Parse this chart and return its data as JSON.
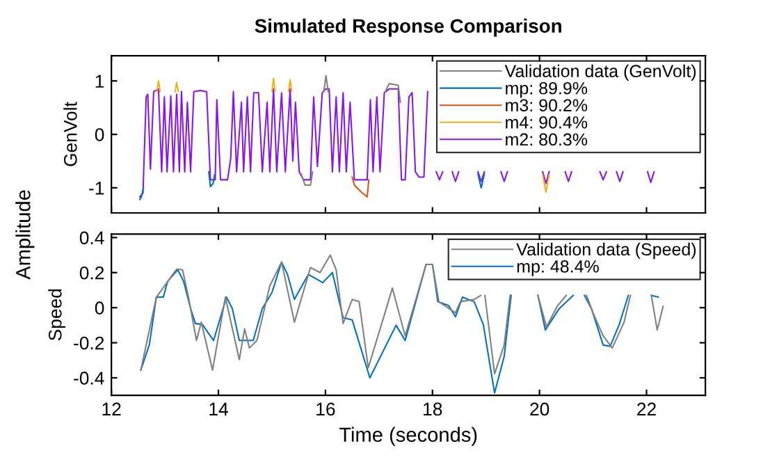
{
  "chart_data": [
    {
      "type": "line",
      "title": "Simulated Response Comparison",
      "ylabel": "GenVolt",
      "annotations": [
        "Amplitude"
      ],
      "x": [
        12.53,
        12.59,
        12.65,
        12.68,
        12.73,
        12.79,
        12.88,
        12.94,
        12.99,
        13.04,
        13.11,
        13.16,
        13.22,
        13.27,
        13.31,
        13.37,
        13.42,
        13.48,
        13.54,
        13.66,
        13.78,
        13.85,
        13.94,
        13.97,
        14.04,
        14.17,
        14.23,
        14.28,
        14.34,
        14.43,
        14.47,
        14.54,
        14.6,
        14.66,
        14.75,
        14.82,
        14.91,
        14.96,
        15.03,
        15.09,
        15.18,
        15.25,
        15.34,
        15.39,
        15.44,
        15.51,
        15.59,
        15.72,
        15.78,
        15.85,
        15.94,
        16.01,
        16.07,
        16.13,
        16.2,
        16.26,
        16.33,
        16.39,
        16.46,
        16.54,
        16.67,
        16.78,
        16.84,
        16.89,
        16.96,
        17.02,
        17.1,
        17.19,
        17.36,
        17.42,
        17.49,
        17.56,
        17.62,
        17.68,
        17.75,
        17.84,
        17.91,
        18.0,
        18.07,
        18.13,
        18.19,
        18.25,
        18.37,
        18.43,
        18.49,
        18.55,
        18.85,
        18.91,
        18.97,
        19.03,
        19.28,
        19.34,
        19.4,
        19.46,
        20.06,
        20.12,
        20.18,
        20.24,
        20.48,
        20.54,
        20.6,
        20.66,
        21.13,
        21.19,
        21.25,
        21.31,
        21.44,
        21.5,
        21.56,
        21.62,
        22.02,
        22.08,
        22.14
      ],
      "series": [
        {
          "name": "Validation data (GenVolt)",
          "color": "#808080",
          "x": [
            15.55,
            15.62,
            15.72,
            15.76,
            15.9,
            15.97,
            16.01,
            16.05,
            16.5,
            17.12,
            17.19,
            17.36,
            17.4
          ],
          "values": [
            -0.75,
            -0.95,
            -0.95,
            -0.7,
            null,
            0.8,
            1.1,
            0.8,
            null,
            0.8,
            0.95,
            0.92,
            0.6
          ]
        },
        {
          "name": "mp: 89.9%",
          "color": "#0072bd",
          "x": [
            12.53,
            12.56,
            12.6,
            12.7,
            13.82,
            13.85,
            13.9,
            13.93,
            14.2,
            18.85,
            18.91,
            18.97
          ],
          "values": [
            -1.22,
            -1.17,
            -1.0,
            null,
            -0.7,
            -0.98,
            -0.92,
            -0.75,
            null,
            -0.74,
            -1.0,
            -0.74
          ]
        },
        {
          "name": "m3: 90.2%",
          "color": "#d95319",
          "x": [
            16.5,
            16.54,
            16.67,
            16.78,
            16.81
          ],
          "values": [
            -0.8,
            -0.95,
            -1.08,
            -1.17,
            -0.85
          ]
        },
        {
          "name": "m4: 90.4%",
          "color": "#edb120",
          "x": [
            12.85,
            12.88,
            12.91,
            13.0,
            13.19,
            13.22,
            13.25,
            13.5,
            15.0,
            15.03,
            15.06,
            15.2,
            15.31,
            15.34,
            15.37,
            15.6,
            20.06,
            20.12,
            20.18
          ],
          "values": [
            0.8,
            1.0,
            0.8,
            null,
            0.8,
            0.97,
            0.8,
            null,
            0.8,
            1.05,
            0.8,
            null,
            0.8,
            1.02,
            0.8,
            null,
            -0.76,
            -1.08,
            -0.76
          ]
        },
        {
          "name": "m2: 80.3%",
          "color": "#8b17e6",
          "values": [
            -1.17,
            -1.1,
            0.7,
            0.75,
            -0.65,
            0.8,
            0.85,
            -0.7,
            0.7,
            -0.7,
            0.72,
            -0.7,
            0.75,
            -0.7,
            0.8,
            -0.7,
            0.6,
            -0.7,
            0.8,
            0.82,
            0.8,
            -0.85,
            -0.85,
            0.65,
            -0.85,
            -0.85,
            -0.45,
            0.8,
            -0.7,
            0.6,
            -0.7,
            0.7,
            -0.7,
            0.78,
            0.78,
            -0.7,
            0.6,
            -0.7,
            0.85,
            -0.7,
            0.78,
            -0.7,
            0.85,
            -0.5,
            0.6,
            -0.7,
            -0.85,
            -0.85,
            0.7,
            -0.6,
            0.78,
            0.85,
            0.85,
            -0.7,
            0.7,
            -0.7,
            0.78,
            -0.7,
            0.6,
            -0.85,
            -0.85,
            -0.85,
            0.65,
            -0.7,
            0.7,
            -0.7,
            0.78,
            0.85,
            0.85,
            -0.85,
            -0.85,
            0.7,
            0.78,
            -0.7,
            -0.8,
            -0.8,
            0.8,
            null,
            -0.7,
            -0.85,
            -0.7,
            null,
            -0.7,
            -0.88,
            -0.7,
            null,
            -0.7,
            -0.88,
            -0.7,
            null,
            -0.7,
            -0.88,
            -0.7,
            null,
            -0.7,
            -0.92,
            -0.7,
            null,
            -0.7,
            -0.88,
            -0.7,
            null,
            -0.7,
            -0.85,
            -0.7,
            null,
            -0.7,
            -0.88,
            -0.7,
            null,
            -0.7,
            -0.9,
            -0.7
          ]
        }
      ],
      "xlim": [
        12,
        23.1
      ],
      "xticks": [
        12,
        14,
        16,
        18,
        20,
        22
      ],
      "ylim": [
        -1.47,
        1.47
      ],
      "yticks": [
        -1,
        0,
        1
      ],
      "tick_labels": "y",
      "legend": "top right",
      "grid": false,
      "marker": "none",
      "line_style": "solid"
    },
    {
      "type": "line",
      "xlabel": "Time (seconds)",
      "ylabel": "Speed",
      "series": [
        {
          "name": "Validation data (Speed)",
          "color": "#808080",
          "x": [
            12.55,
            12.84,
            13.22,
            13.33,
            13.44,
            13.59,
            13.68,
            13.89,
            14.13,
            14.39,
            14.49,
            14.58,
            14.72,
            14.96,
            15.18,
            15.42,
            15.72,
            15.9,
            16.09,
            16.2,
            16.33,
            16.5,
            16.63,
            16.8,
            17.15,
            17.25,
            17.49,
            17.88,
            18.0,
            18.12,
            18.43,
            18.52,
            18.78,
            18.9,
            18.95,
            18.98,
            19.16,
            19.34,
            19.45,
            19.6,
            19.97,
            20.13,
            20.33,
            20.5,
            20.7,
            20.88,
            21.02,
            21.19,
            21.36,
            21.58,
            21.7,
            21.9,
            22.09,
            22.2,
            22.31
          ],
          "values": [
            -0.356,
            0.06,
            0.22,
            0.216,
            0.06,
            -0.187,
            -0.083,
            -0.356,
            0.06,
            -0.296,
            -0.12,
            -0.23,
            -0.187,
            0.125,
            0.26,
            -0.083,
            0.229,
            0.2,
            0.3,
            0.216,
            -0.09,
            0.047,
            0.034,
            -0.343,
            0.008,
            0.112,
            -0.161,
            0.247,
            0.247,
            0.034,
            -0.03,
            0.034,
            0.047,
            0.07,
            null,
            0.07,
            -0.377,
            -0.213,
            0.07,
            null,
            0.07,
            -0.109,
            0.008,
            0.07,
            null,
            0.07,
            -0.044,
            -0.161,
            -0.23,
            -0.083,
            0.07,
            null,
            0.07,
            -0.127,
            0.008
          ]
        },
        {
          "name": "mp: 48.4%",
          "color": "#0072bd",
          "x": [
            12.55,
            12.71,
            12.84,
            12.97,
            13.05,
            13.24,
            13.35,
            13.48,
            13.57,
            13.7,
            13.91,
            14.15,
            14.26,
            14.39,
            14.65,
            14.82,
            15.0,
            15.18,
            15.29,
            15.42,
            15.68,
            15.95,
            16.13,
            16.33,
            16.5,
            16.83,
            17.32,
            17.49,
            17.88,
            18.0,
            18.1,
            18.3,
            18.43,
            18.56,
            18.78,
            18.95,
            19.16,
            19.34,
            19.47,
            19.6,
            19.97,
            20.11,
            20.37,
            20.63,
            20.75,
            20.84,
            20.97,
            21.19,
            21.32,
            21.49,
            21.66,
            21.9,
            22.09,
            22.22
          ],
          "values": [
            -0.356,
            -0.21,
            0.06,
            0.06,
            0.15,
            0.216,
            0.15,
            -0.005,
            -0.09,
            -0.096,
            -0.187,
            0.06,
            -0.005,
            -0.187,
            -0.187,
            -0.005,
            0.086,
            0.26,
            0.19,
            0.047,
            0.19,
            0.143,
            0.2,
            -0.057,
            -0.07,
            -0.4,
            -0.1,
            -0.187,
            0.247,
            0.247,
            0.034,
            0.013,
            -0.052,
            0.06,
            0.034,
            -0.096,
            -0.486,
            -0.278,
            0.07,
            null,
            0.07,
            -0.127,
            -0.005,
            0.07,
            null,
            0.07,
            -0.005,
            -0.213,
            -0.22,
            -0.096,
            0.07,
            null,
            0.07,
            0.06
          ]
        }
      ],
      "xlim": [
        12,
        23.1
      ],
      "xticks": [
        12,
        14,
        16,
        18,
        20,
        22
      ],
      "ylim": [
        -0.5,
        0.42
      ],
      "yticks": [
        -0.4,
        -0.2,
        0,
        0.2,
        0.4
      ],
      "legend": "top right",
      "grid": false,
      "marker": "none",
      "line_style": "solid"
    }
  ]
}
